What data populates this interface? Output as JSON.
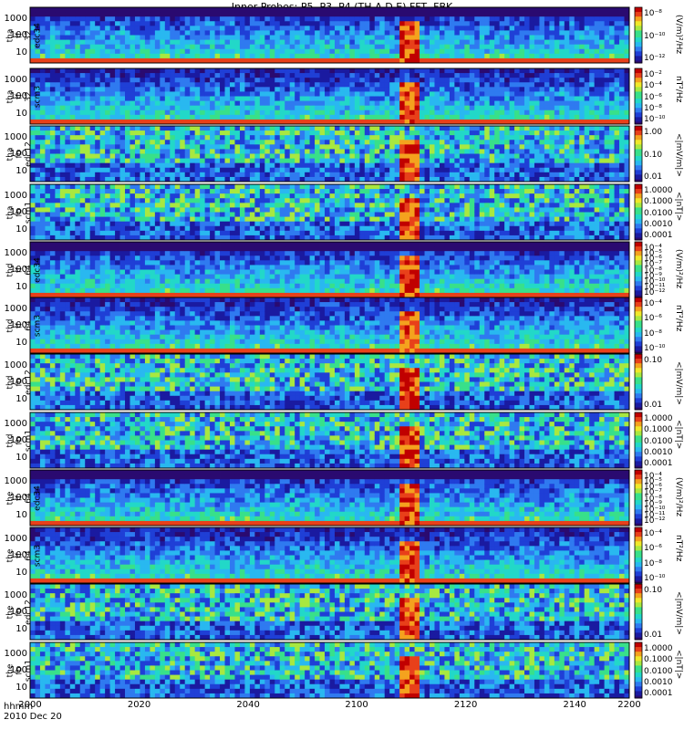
{
  "title": "Inner Probes: P5, P3, P4 (TH-A,D,E) FFT, FBK",
  "footer": {
    "time_label": "hhmm",
    "date_label": "2010 Dec 20"
  },
  "chart_data": {
    "type": "heatmap",
    "x": {
      "ticks": [
        "2000",
        "2020",
        "2040",
        "2100",
        "2120",
        "2140",
        "2200"
      ]
    },
    "panels": [
      {
        "probe": "tha",
        "label": [
          "tha",
          "ff",
          "32",
          "edc34"
        ],
        "yticks": [
          "1000",
          "100",
          "10"
        ],
        "cticks": [
          "10⁻⁸",
          "10⁻¹⁰",
          "10⁻¹²"
        ],
        "cunit": "(V/m)²/Hz"
      },
      {
        "probe": "tha",
        "label": [
          "tha",
          "ff",
          "32",
          "scm3"
        ],
        "yticks": [
          "1000",
          "100",
          "10"
        ],
        "cticks": [
          "10⁻²",
          "10⁻⁴",
          "10⁻⁶",
          "10⁻⁸",
          "10⁻¹⁰"
        ],
        "cunit": "nT²/Hz"
      },
      {
        "probe": "tha",
        "label": [
          "tha",
          "fb",
          "edc12"
        ],
        "yticks": [
          "1000",
          "100",
          "10"
        ],
        "cticks": [
          "1.00",
          "0.10",
          "0.01"
        ],
        "cunit": "<|mV/m|>"
      },
      {
        "probe": "tha",
        "label": [
          "tha",
          "fb",
          "scm1"
        ],
        "yticks": [
          "1000",
          "100",
          "10"
        ],
        "cticks": [
          "1.0000",
          "0.1000",
          "0.0100",
          "0.0010",
          "0.0001"
        ],
        "cunit": "<|nT|>"
      },
      {
        "probe": "thd",
        "label": [
          "thd",
          "ff",
          "64",
          "edc34"
        ],
        "yticks": [
          "1000",
          "100",
          "10"
        ],
        "cticks": [
          "10⁻⁴",
          "10⁻⁵",
          "10⁻⁶",
          "10⁻⁷",
          "10⁻⁸",
          "10⁻⁹",
          "10⁻¹⁰",
          "10⁻¹¹",
          "10⁻¹²"
        ],
        "cunit": "(V/m)²/Hz"
      },
      {
        "probe": "thd",
        "label": [
          "thd",
          "ff",
          "64",
          "scm3"
        ],
        "yticks": [
          "1000",
          "100",
          "10"
        ],
        "cticks": [
          "10⁻⁴",
          "10⁻⁶",
          "10⁻⁸",
          "10⁻¹⁰"
        ],
        "cunit": "nT²/Hz"
      },
      {
        "probe": "thd",
        "label": [
          "thd",
          "fb",
          "edc12"
        ],
        "yticks": [
          "1000",
          "100",
          "10"
        ],
        "cticks": [
          "0.10",
          "0.01"
        ],
        "cunit": "<|mV/m|>"
      },
      {
        "probe": "thd",
        "label": [
          "thd",
          "fb",
          "scm1"
        ],
        "yticks": [
          "1000",
          "100",
          "10"
        ],
        "cticks": [
          "1.0000",
          "0.1000",
          "0.0100",
          "0.0010",
          "0.0001"
        ],
        "cunit": "<|nT|>"
      },
      {
        "probe": "the",
        "label": [
          "the",
          "ff",
          "64",
          "edc34"
        ],
        "yticks": [
          "1000",
          "100",
          "10"
        ],
        "cticks": [
          "10⁻⁴",
          "10⁻⁵",
          "10⁻⁶",
          "10⁻⁷",
          "10⁻⁸",
          "10⁻⁹",
          "10⁻¹⁰",
          "10⁻¹¹",
          "10⁻¹²"
        ],
        "cunit": "(V/m)²/Hz"
      },
      {
        "probe": "the",
        "label": [
          "the",
          "ff",
          "64",
          "scm3"
        ],
        "yticks": [
          "1000",
          "100",
          "10"
        ],
        "cticks": [
          "10⁻⁴",
          "10⁻⁶",
          "10⁻⁸",
          "10⁻¹⁰"
        ],
        "cunit": "nT²/Hz"
      },
      {
        "probe": "the",
        "label": [
          "the",
          "fb",
          "edc12"
        ],
        "yticks": [
          "1000",
          "100",
          "10"
        ],
        "cticks": [
          "0.10",
          "0.01"
        ],
        "cunit": "<|mV/m|>"
      },
      {
        "probe": "the",
        "label": [
          "the",
          "fb",
          "scm1"
        ],
        "yticks": [
          "1000",
          "100",
          "10"
        ],
        "cticks": [
          "1.0000",
          "0.1000",
          "0.0100",
          "0.0010",
          "0.0001"
        ],
        "cunit": "<|nT|>"
      }
    ]
  }
}
